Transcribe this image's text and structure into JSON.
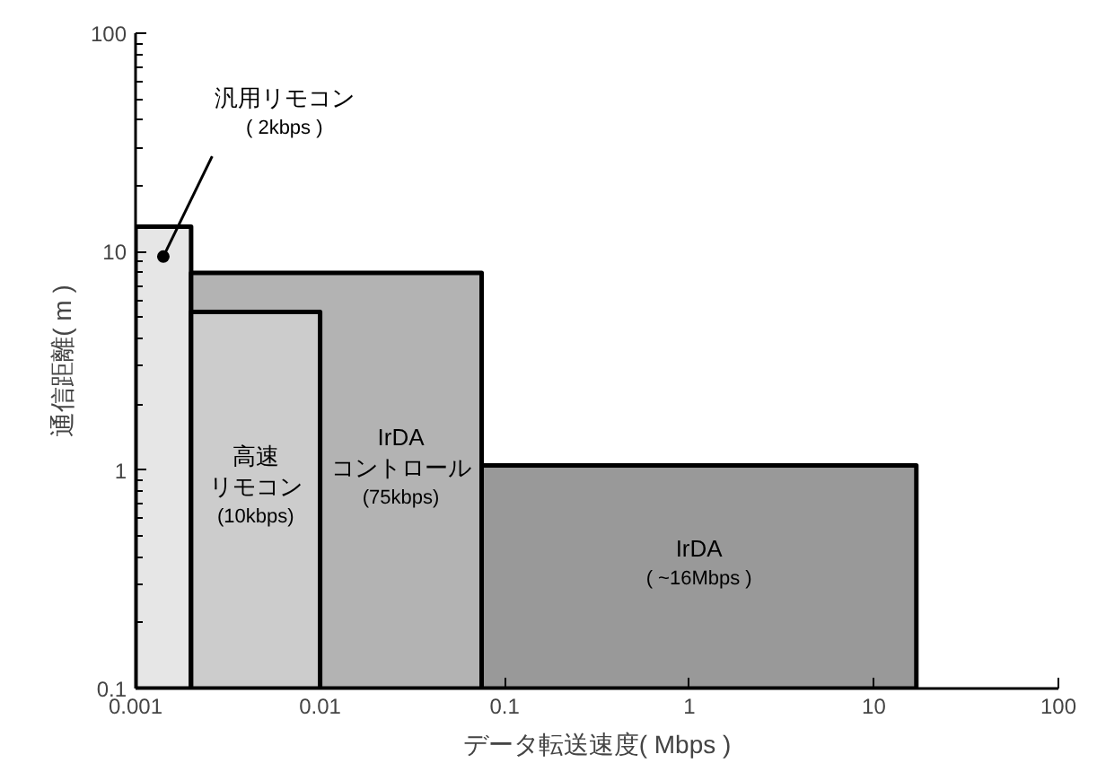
{
  "chart_data": {
    "type": "area",
    "xlabel": "データ転送速度( Mbps )",
    "ylabel": "通信距離( m )",
    "log": "xy",
    "xlim": [
      0.001,
      100
    ],
    "ylim": [
      0.1,
      100
    ],
    "xticks": [
      0.001,
      0.01,
      0.1,
      1,
      10,
      100
    ],
    "yticks": [
      0.1,
      1,
      10,
      100
    ],
    "series": [
      {
        "name": "汎用リモコン\n( 2kbps )",
        "color": "#e6e6e6",
        "x": [
          0.001,
          0.002
        ],
        "values": [
          13,
          13
        ]
      },
      {
        "name": "IrDA\nコントロール\n(75kbps)",
        "color": "#b3b3b3",
        "x": [
          0.002,
          0.075
        ],
        "values": [
          8,
          8
        ]
      },
      {
        "name": "高速リモコン\n(10kbps)",
        "color": "#cccccc",
        "x": [
          0.002,
          0.01
        ],
        "values": [
          5.3,
          5.3
        ]
      },
      {
        "name": "IrDA\n( ~16Mbps )",
        "color": "#999999",
        "x": [
          0.075,
          17
        ],
        "values": [
          1.05,
          1.05
        ]
      }
    ]
  }
}
